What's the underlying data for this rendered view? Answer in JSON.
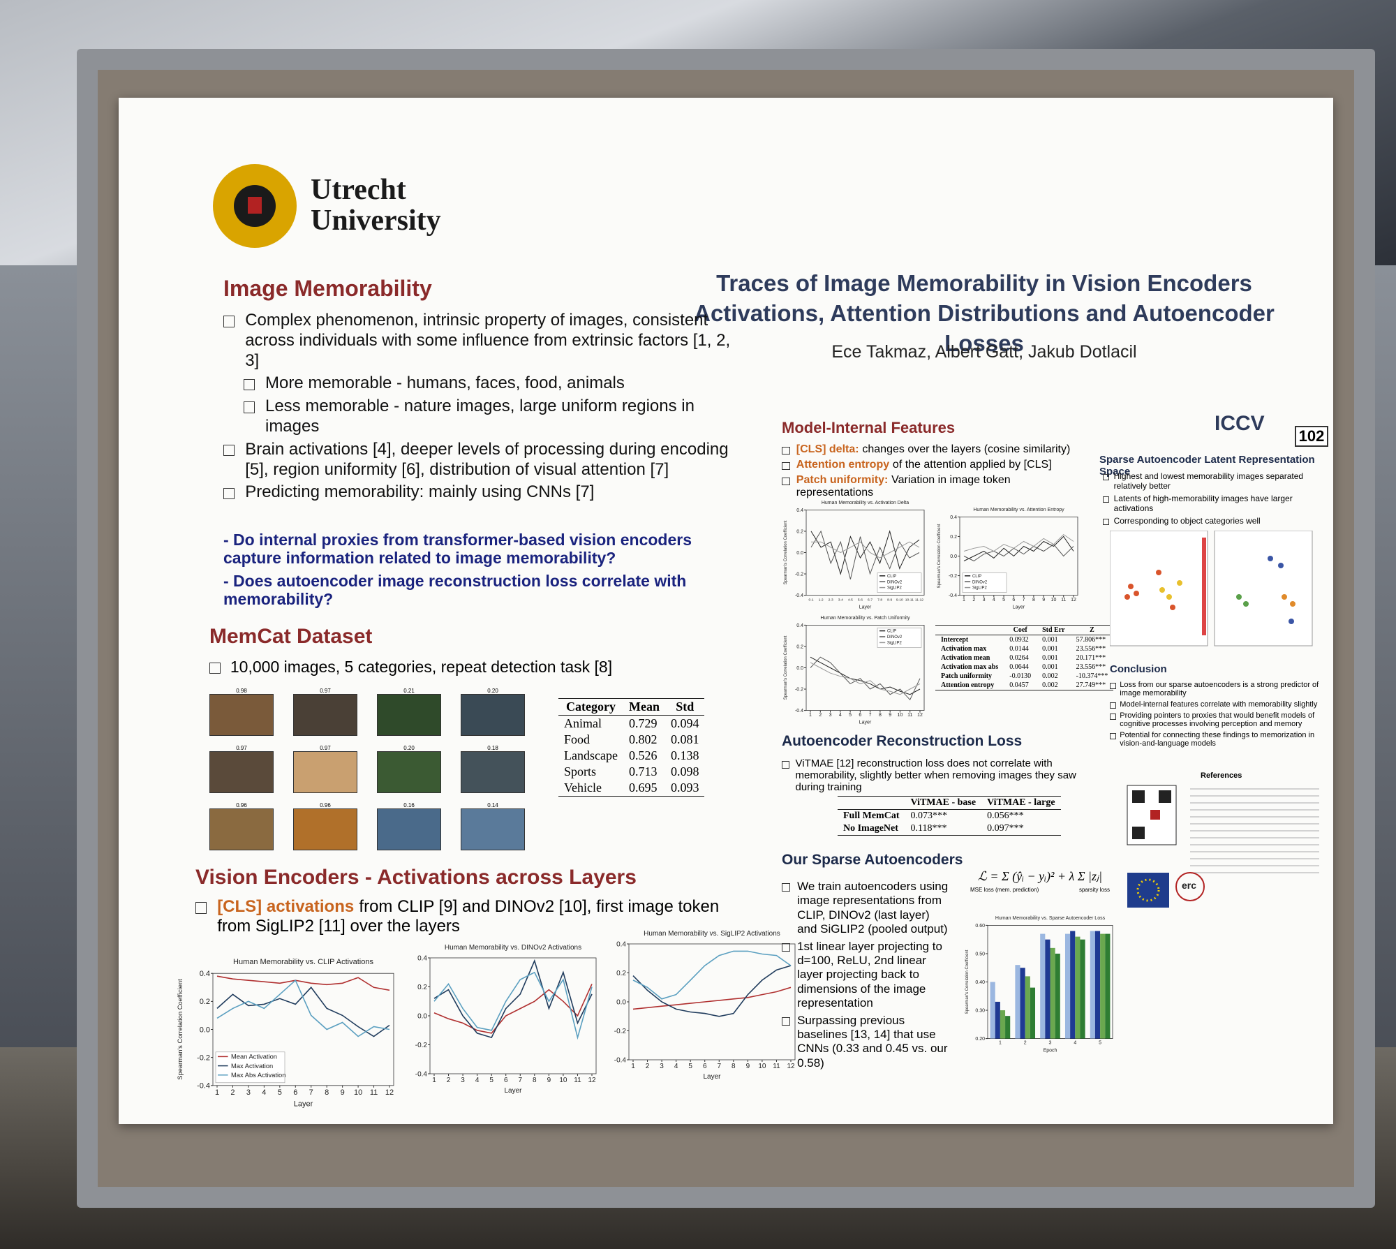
{
  "header": {
    "university": "Utrecht University",
    "title_line1": "Traces of Image Memorability in Vision Encoders",
    "title_line2": "Activations, Attention Distributions and Autoencoder Losses",
    "authors": "Ece Takmaz, Albert Gatt, Jakub Dotlacil",
    "conference": "ICCV",
    "board_number": "102"
  },
  "memorability": {
    "heading": "Image Memorability",
    "bullets": [
      "Complex phenomenon, intrinsic property of images, consistent across individuals with some influence from extrinsic factors [1, 2, 3]",
      "More memorable - humans, faces, food, animals",
      "Less memorable - nature images, large uniform regions in images",
      "Brain activations [4], deeper levels of processing during encoding [5], region uniformity [6], distribution of visual attention [7]",
      "Predicting memorability: mainly using CNNs [7]"
    ],
    "questions": [
      "- Do internal proxies from transformer-based vision encoders capture information related to image memorability?",
      "- Does autoencoder image reconstruction loss correlate with memorability?"
    ]
  },
  "memcat": {
    "heading": "MemCat Dataset",
    "bullet": "10,000 images, 5 categories, repeat detection task [8]",
    "image_scores": [
      "0.98",
      "0.97",
      "0.21",
      "0.20",
      "0.97",
      "0.97",
      "0.20",
      "0.18",
      "0.96",
      "0.96",
      "0.16",
      "0.14"
    ],
    "table": {
      "columns": [
        "Category",
        "Mean",
        "Std"
      ],
      "rows": [
        [
          "Animal",
          "0.729",
          "0.094"
        ],
        [
          "Food",
          "0.802",
          "0.081"
        ],
        [
          "Landscape",
          "0.526",
          "0.138"
        ],
        [
          "Sports",
          "0.713",
          "0.098"
        ],
        [
          "Vehicle",
          "0.695",
          "0.093"
        ]
      ]
    }
  },
  "vision": {
    "heading": "Vision Encoders - Activations across Layers",
    "bullet": {
      "highlight": "[CLS] activations",
      "text": "from CLIP [9] and DINOv2 [10], first image token from SigLIP2 [11] over the layers"
    },
    "charts": [
      {
        "type": "line",
        "title": "Human Memorability vs. CLIP Activations",
        "x_label": "Layer",
        "y_label": "Spearman's Correlation Coefficient",
        "x": [
          1,
          2,
          3,
          4,
          5,
          6,
          7,
          8,
          9,
          10,
          11,
          12
        ],
        "xlim": [
          1,
          12
        ],
        "xticks": [
          1,
          2,
          3,
          4,
          5,
          6,
          7,
          8,
          9,
          10,
          11,
          12
        ],
        "ylim": [
          -0.4,
          0.4
        ],
        "yticks": [
          -0.4,
          -0.2,
          {
            "value": 0,
            "label": "0.0"
          },
          0.2,
          0.4
        ],
        "legend": "lower left",
        "series": [
          {
            "name": "Mean Activation",
            "color": "#b03030",
            "values": [
              0.38,
              0.36,
              0.35,
              0.34,
              0.33,
              0.35,
              0.33,
              0.32,
              0.33,
              0.37,
              0.3,
              0.28
            ]
          },
          {
            "name": "Max Activation",
            "color": "#1f3b5c",
            "values": [
              0.15,
              0.25,
              0.17,
              0.18,
              0.22,
              0.18,
              0.3,
              0.15,
              0.1,
              0.02,
              -0.05,
              0.03
            ]
          },
          {
            "name": "Max Abs Activation",
            "color": "#5a9fc0",
            "values": [
              0.08,
              0.15,
              0.2,
              0.15,
              0.25,
              0.35,
              0.1,
              0.0,
              0.05,
              -0.05,
              0.02,
              0.0
            ]
          }
        ]
      },
      {
        "type": "line",
        "title": "Human Memorability vs. DINOv2 Activations",
        "x_label": "Layer",
        "x": [
          1,
          2,
          3,
          4,
          5,
          6,
          7,
          8,
          9,
          10,
          11,
          12
        ],
        "xlim": [
          1,
          12
        ],
        "xticks": [
          1,
          2,
          3,
          4,
          5,
          6,
          7,
          8,
          9,
          10,
          11,
          12
        ],
        "ylim": [
          -0.4,
          0.4
        ],
        "yticks": [
          -0.4,
          -0.2,
          {
            "value": 0,
            "label": "0.0"
          },
          0.2,
          0.4
        ],
        "series": [
          {
            "color": "#b03030",
            "values": [
              0.02,
              -0.02,
              -0.05,
              -0.1,
              -0.12,
              0.0,
              0.05,
              0.1,
              0.18,
              0.1,
              0.0,
              0.22
            ]
          },
          {
            "color": "#1f3b5c",
            "values": [
              0.12,
              0.18,
              0.0,
              -0.12,
              -0.15,
              0.05,
              0.15,
              0.38,
              0.05,
              0.3,
              -0.05,
              0.15
            ]
          },
          {
            "color": "#5a9fc0",
            "values": [
              0.1,
              0.22,
              0.05,
              -0.08,
              -0.1,
              0.1,
              0.25,
              0.3,
              0.1,
              0.25,
              -0.15,
              0.2
            ]
          }
        ]
      },
      {
        "type": "line",
        "title": "Human Memorability vs. SigLIP2 Activations",
        "x_label": "Layer",
        "x": [
          1,
          2,
          3,
          4,
          5,
          6,
          7,
          8,
          9,
          10,
          11,
          12
        ],
        "xlim": [
          1,
          12
        ],
        "xticks": [
          1,
          2,
          3,
          4,
          5,
          6,
          7,
          8,
          9,
          10,
          11,
          12
        ],
        "ylim": [
          -0.4,
          0.4
        ],
        "yticks": [
          -0.4,
          -0.2,
          {
            "value": 0,
            "label": "0.0"
          },
          0.2,
          0.4
        ],
        "series": [
          {
            "color": "#b03030",
            "values": [
              -0.05,
              -0.04,
              -0.03,
              -0.02,
              -0.01,
              0.0,
              0.01,
              0.02,
              0.03,
              0.05,
              0.07,
              0.1
            ]
          },
          {
            "color": "#1f3b5c",
            "values": [
              0.18,
              0.08,
              0.0,
              -0.05,
              -0.07,
              -0.08,
              -0.1,
              -0.08,
              0.05,
              0.15,
              0.22,
              0.25
            ]
          },
          {
            "color": "#5a9fc0",
            "values": [
              0.15,
              0.1,
              0.02,
              0.05,
              0.15,
              0.25,
              0.32,
              0.35,
              0.35,
              0.33,
              0.32,
              0.25
            ]
          }
        ]
      }
    ]
  },
  "features": {
    "heading": "Model-Internal Features",
    "bullets": [
      {
        "highlight": "[CLS] delta:",
        "text": "changes over the layers (cosine similarity)"
      },
      {
        "highlight": "Attention entropy",
        "text": "of the attention applied by [CLS]"
      },
      {
        "highlight": "Patch uniformity:",
        "text": "Variation in image token representations"
      }
    ],
    "charts": [
      {
        "type": "line",
        "title": "Human Memorability vs. Activation Delta",
        "x_label": "Layer",
        "y_label": "Spearman's Correlation Coefficient",
        "categories": [
          "0-1",
          "1-2",
          "2-3",
          "3-4",
          "4-5",
          "5-6",
          "6-7",
          "7-8",
          "8-9",
          "9-10",
          "10-11",
          "11-12"
        ],
        "ylim": [
          -0.4,
          0.4
        ],
        "yticks": [
          -0.4,
          -0.2,
          {
            "value": 0,
            "label": "0.0"
          },
          0.2,
          0.4
        ],
        "legend": "lower right",
        "series": [
          {
            "name": "CLIP",
            "color": "#222222",
            "values": [
              0.2,
              0.05,
              0.1,
              -0.2,
              0.15,
              -0.05,
              0.1,
              -0.1,
              0.2,
              -0.15,
              0.05,
              0.12
            ]
          },
          {
            "name": "DINOv2",
            "color": "#555555",
            "values": [
              0.05,
              0.2,
              -0.1,
              0.1,
              -0.25,
              0.15,
              -0.2,
              0.05,
              -0.15,
              0.1,
              -0.05,
              0.0
            ]
          },
          {
            "name": "SigLIP2",
            "color": "#999999",
            "values": [
              0.1,
              0.1,
              0.05,
              0.0,
              0.05,
              0.1,
              0.0,
              -0.05,
              0.0,
              0.05,
              0.1,
              0.05
            ]
          }
        ]
      },
      {
        "type": "line",
        "title": "Human Memorability vs. Attention Entropy",
        "x_label": "Layer",
        "y_label": "Spearman's Correlation Coefficient",
        "x": [
          1,
          2,
          3,
          4,
          5,
          6,
          7,
          8,
          9,
          10,
          11,
          12
        ],
        "xlim": [
          1,
          12
        ],
        "xticks": [
          1,
          2,
          3,
          4,
          5,
          6,
          7,
          8,
          9,
          10,
          11,
          12
        ],
        "ylim": [
          -0.4,
          0.4
        ],
        "yticks": [
          -0.4,
          -0.2,
          {
            "value": 0,
            "label": "0.0"
          },
          0.2,
          0.4
        ],
        "legend": "lower left",
        "series": [
          {
            "name": "CLIP",
            "color": "#222222",
            "values": [
              -0.05,
              0.0,
              0.05,
              -0.02,
              0.08,
              0.0,
              0.1,
              0.05,
              0.15,
              0.1,
              0.2,
              0.05
            ]
          },
          {
            "name": "DINOv2",
            "color": "#555555",
            "values": [
              0.0,
              -0.05,
              0.02,
              0.05,
              0.0,
              0.08,
              0.02,
              0.1,
              0.05,
              0.12,
              0.0,
              0.1
            ]
          },
          {
            "name": "SigLIP2",
            "color": "#999999",
            "values": [
              0.05,
              0.08,
              0.1,
              0.05,
              0.12,
              0.08,
              0.15,
              0.1,
              0.18,
              0.12,
              0.22,
              0.15
            ]
          }
        ]
      },
      {
        "type": "line",
        "title": "Human Memorability vs. Patch Uniformity",
        "x_label": "Layer",
        "y_label": "Spearman's Correlation Coefficient",
        "x": [
          1,
          2,
          3,
          4,
          5,
          6,
          7,
          8,
          9,
          10,
          11,
          12
        ],
        "xlim": [
          1,
          12
        ],
        "xticks": [
          1,
          2,
          3,
          4,
          5,
          6,
          7,
          8,
          9,
          10,
          11,
          12
        ],
        "ylim": [
          -0.4,
          0.4
        ],
        "yticks": [
          -0.4,
          -0.2,
          {
            "value": 0,
            "label": "0.0"
          },
          0.2,
          0.4
        ],
        "legend": "upper right",
        "series": [
          {
            "name": "CLIP",
            "color": "#222222",
            "values": [
              0.1,
              0.05,
              0.0,
              -0.05,
              -0.1,
              -0.12,
              -0.15,
              -0.2,
              -0.18,
              -0.22,
              -0.25,
              -0.2
            ]
          },
          {
            "name": "DINOv2",
            "color": "#555555",
            "values": [
              0.0,
              0.1,
              0.05,
              -0.05,
              -0.15,
              -0.1,
              -0.2,
              -0.15,
              -0.25,
              -0.2,
              -0.3,
              -0.1
            ]
          },
          {
            "name": "SigLIP2",
            "color": "#999999",
            "values": [
              0.05,
              0.0,
              -0.05,
              -0.08,
              -0.1,
              -0.15,
              -0.12,
              -0.2,
              -0.22,
              -0.25,
              -0.2,
              -0.15
            ]
          }
        ]
      }
    ],
    "table": {
      "columns": [
        "Coef",
        "Std Err",
        "Z"
      ],
      "rows": [
        [
          "Intercept",
          "0.0932",
          "0.001",
          "57.806***"
        ],
        [
          "Activation max",
          "0.0144",
          "0.001",
          "23.556***"
        ],
        [
          "Activation mean",
          "0.0264",
          "0.001",
          "20.171***"
        ],
        [
          "Activation max abs",
          "0.0644",
          "0.001",
          "23.556***"
        ],
        [
          "Patch uniformity",
          "-0.0130",
          "0.002",
          "-10.374***"
        ],
        [
          "Attention entropy",
          "0.0457",
          "0.002",
          "27.749***"
        ]
      ]
    }
  },
  "reconstruction": {
    "heading": "Autoencoder Reconstruction Loss",
    "bullet": "ViTMAE [12] reconstruction loss does not correlate with memorability, slightly better when removing images they saw during training",
    "table": {
      "columns": [
        "ViTMAE - base",
        "ViTMAE - large"
      ],
      "rows": [
        [
          "Full MemCat",
          "0.073***",
          "0.056***"
        ],
        [
          "No ImageNet",
          "0.118***",
          "0.097***"
        ]
      ]
    }
  },
  "sparse": {
    "heading": "Our Sparse Autoencoders",
    "bullets": [
      "We train autoencoders using image representations from CLIP, DINOv2 (last layer) and SiGLIP2 (pooled output)",
      "1st linear layer projecting to d=100, ReLU, 2nd linear layer projecting back to dimensions of the image representation",
      "Surpassing previous baselines [13, 14] that use CNNs (0.33 and 0.45 vs. our 0.58)"
    ],
    "formula": "ℒ = Σ (ŷᵢ − yᵢ)² + λ Σ |zⱼ|",
    "formula_mse": "MSE loss (mem. prediction)",
    "formula_sparsity": "sparsity loss",
    "chart": {
      "type": "bar",
      "title": "Human Memorability vs. Sparse Autoencoder Loss",
      "x_label": "Epoch",
      "y_label": "Spearman's Correlation Coefficient",
      "categories": [
        "1",
        "2",
        "3",
        "4",
        "5"
      ],
      "ylim": [
        0.2,
        0.6
      ],
      "yticks": [
        {
          "value": 0.2,
          "label": "0.20"
        },
        {
          "value": 0.3,
          "label": "0.30"
        },
        {
          "value": 0.4,
          "label": "0.40"
        },
        {
          "value": 0.5,
          "label": "0.50"
        },
        {
          "value": 0.6,
          "label": "0.60"
        }
      ],
      "series": [
        {
          "color": "#9bb7e0",
          "values": [
            0.4,
            0.46,
            0.57,
            0.57,
            0.58
          ]
        },
        {
          "color": "#1f3a93",
          "values": [
            0.33,
            0.45,
            0.55,
            0.58,
            0.58
          ]
        },
        {
          "color": "#6aa84f",
          "values": [
            0.3,
            0.42,
            0.52,
            0.56,
            0.57
          ]
        },
        {
          "color": "#2e7d32",
          "values": [
            0.28,
            0.38,
            0.5,
            0.55,
            0.57
          ]
        }
      ]
    }
  },
  "latent": {
    "heading": "Sparse Autoencoder Latent Representation Space",
    "bullets": [
      "Highest and lowest memorability images separated relatively better",
      "Latents of high-memorability images have larger activations",
      "Corresponding to object categories well"
    ]
  },
  "conclusion": {
    "heading": "Conclusion",
    "bullets": [
      "Loss from our sparse autoencoders is a strong predictor of image memorability",
      "Model-internal features correlate with memorability slightly",
      "Providing pointers to proxies that would benefit models of cognitive processes involving perception and memory",
      "Potential for connecting these findings to memorization in vision-and-language models"
    ]
  },
  "references": {
    "heading": "References"
  },
  "logos": {
    "erc": "erc"
  }
}
